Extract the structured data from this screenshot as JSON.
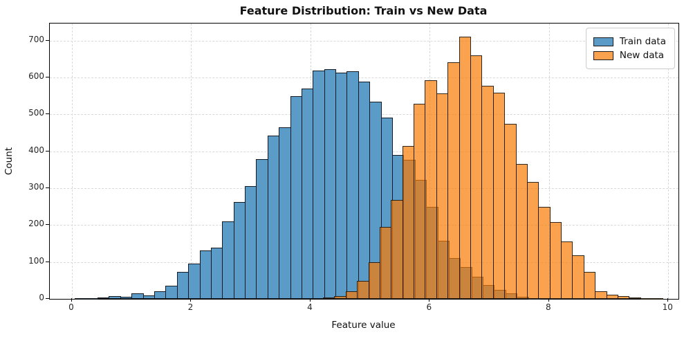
{
  "title": "Feature Distribution: Train vs New Data",
  "xlabel": "Feature value",
  "ylabel": "Count",
  "legend": {
    "entries": [
      {
        "label": "Train data",
        "color": "rgb(90,155,199)"
      },
      {
        "label": "New data",
        "color": "rgb(251,162,79)"
      }
    ]
  },
  "chart_data": {
    "type": "bar",
    "subtype": "histogram",
    "title": "Feature Distribution: Train vs New Data",
    "xlabel": "Feature value",
    "ylabel": "Count",
    "grid": "dashed",
    "legend_position": "upper right",
    "xlim": [
      -0.371,
      10.171
    ],
    "ylim": [
      0,
      746.7
    ],
    "x_ticks": [
      0,
      2,
      4,
      6,
      8,
      10
    ],
    "y_ticks": [
      0,
      100,
      200,
      300,
      400,
      500,
      600,
      700
    ],
    "series": [
      {
        "name": "Train data",
        "bin_start": 0.05,
        "bin_width": 0.19,
        "counts": [
          2,
          2,
          3,
          8,
          6,
          15,
          10,
          20,
          36,
          74,
          95,
          132,
          139,
          211,
          263,
          305,
          379,
          443,
          465,
          550,
          570,
          619,
          623,
          614,
          617,
          589,
          535,
          491,
          390,
          378,
          322,
          250,
          158,
          110,
          87,
          60,
          38,
          25,
          15,
          6,
          2
        ]
      },
      {
        "name": "New data",
        "bin_start": 4.21,
        "bin_width": 0.19,
        "counts": [
          3,
          8,
          21,
          49,
          99,
          196,
          268,
          415,
          530,
          593,
          557,
          641,
          711,
          660,
          577,
          560,
          475,
          365,
          318,
          249,
          208,
          155,
          118,
          74,
          20,
          12,
          8,
          3,
          2,
          1
        ]
      }
    ]
  }
}
